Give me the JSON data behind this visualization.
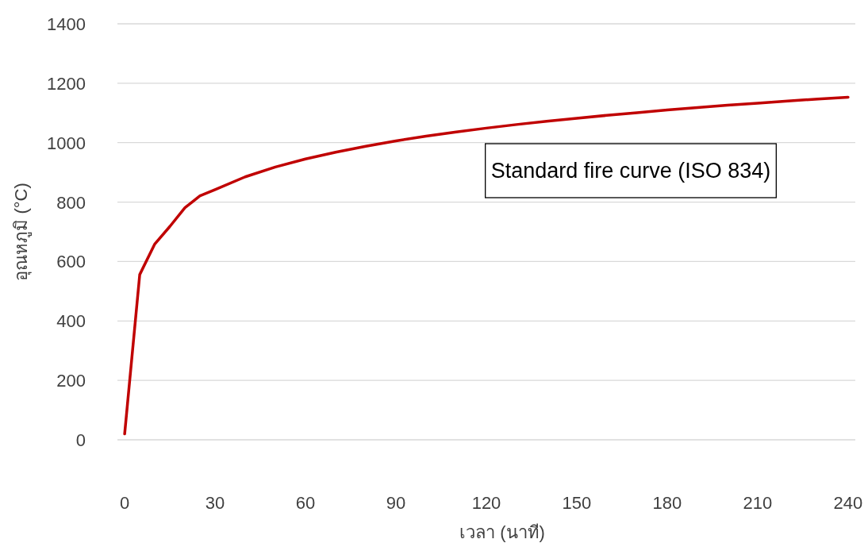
{
  "chart_data": {
    "type": "line",
    "xlabel": "เวลา (นาที)",
    "ylabel": "อุณหภูมิ (°C)",
    "x": [
      0,
      5,
      10,
      15,
      20,
      25,
      30,
      40,
      50,
      60,
      70,
      80,
      90,
      100,
      110,
      120,
      130,
      140,
      150,
      160,
      170,
      180,
      190,
      200,
      210,
      220,
      230,
      240
    ],
    "series": [
      {
        "color": "#c00000",
        "values": [
          20,
          556,
          659,
          718,
          781,
          821,
          842,
          885,
          918,
          945,
          968,
          988,
          1006,
          1022,
          1036,
          1049,
          1061,
          1072,
          1082,
          1092,
          1101,
          1110,
          1118,
          1126,
          1133,
          1140,
          1147,
          1153
        ]
      }
    ],
    "xlim": [
      -2.4,
      242.4
    ],
    "ylim": [
      0,
      1400
    ],
    "xticks": [
      0,
      30,
      60,
      90,
      120,
      150,
      180,
      210,
      240
    ],
    "yticks": [
      0,
      200,
      400,
      600,
      800,
      1000,
      1200,
      1400
    ],
    "grid": "y",
    "annotations": [
      "Standard fire curve (ISO 834)"
    ]
  }
}
